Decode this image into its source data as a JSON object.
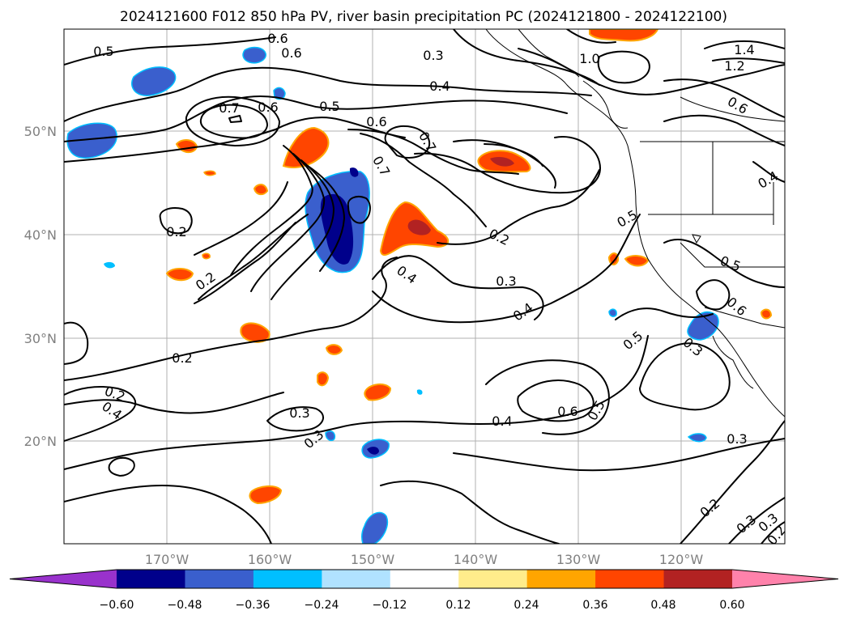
{
  "title": "2024121600 F012 850 hPa PV, river basin precipitation PC (2024121800 - 2024122100)",
  "map": {
    "lon_ticks": [
      "170°W",
      "160°W",
      "150°W",
      "140°W",
      "130°W",
      "120°W"
    ],
    "lat_ticks": [
      "50°N",
      "40°N",
      "30°N",
      "20°N"
    ],
    "grid": true,
    "field_contours": "850 hPa PV",
    "field_shaded": "river basin precipitation PC"
  },
  "contour_labels": [
    "0.5",
    "0.6",
    "0.6",
    "0.3",
    "0.4",
    "0.5",
    "0.7",
    "0.6",
    "0.6",
    "0.7",
    "0.7",
    "1.0",
    "1.4",
    "1.2",
    "0.6",
    "0.4",
    "0.2",
    "0.2",
    "0.2",
    "0.4",
    "0.3",
    "0.2",
    "0.4",
    "0.5",
    "0.5",
    "0.6",
    "0.2",
    "0.3",
    "0.3",
    "0.4",
    "0.3",
    "0.4",
    "0.6",
    "0.5",
    "0.5",
    "0.3",
    "0.3",
    "0.2",
    "0.3",
    "0.2"
  ],
  "colorbar": {
    "ticks": [
      "−0.60",
      "−0.48",
      "−0.36",
      "−0.24",
      "−0.12",
      "0.12",
      "0.24",
      "0.36",
      "0.48",
      "0.60"
    ],
    "colors": [
      "#9932cc",
      "#00008b",
      "#3a5fcd",
      "#00bfff",
      "#b0e2ff",
      "#ffffff",
      "#ffec8b",
      "#ffa500",
      "#ff4500",
      "#b22222",
      "#ff82ab"
    ],
    "extend": "both"
  }
}
